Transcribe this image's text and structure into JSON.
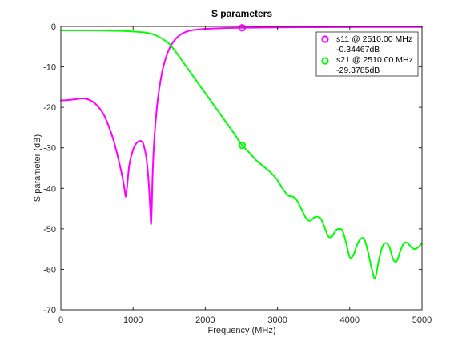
{
  "chart_data": {
    "type": "line",
    "title": "S parameters",
    "xlabel": "Frequency (MHz)",
    "ylabel": "S parameter (dB)",
    "xlim": [
      0,
      5000
    ],
    "ylim": [
      -70,
      0
    ],
    "x_ticks": [
      0,
      1000,
      2000,
      3000,
      4000,
      5000
    ],
    "y_ticks": [
      0,
      -10,
      -20,
      -30,
      -40,
      -50,
      -60,
      -70
    ],
    "x_tick_labels": [
      "0",
      "1000",
      "2000",
      "3000",
      "4000",
      "5000"
    ],
    "y_tick_labels": [
      "0",
      "-10",
      "-20",
      "-30",
      "-40",
      "-50",
      "-60",
      "-70"
    ],
    "grid": false,
    "legend_position": "top-right",
    "series": [
      {
        "name": "s11",
        "color": "#ff00ff",
        "x": [
          0,
          100,
          200,
          300,
          400,
          500,
          600,
          700,
          750,
          800,
          850,
          880,
          900,
          920,
          950,
          1000,
          1050,
          1100,
          1130,
          1150,
          1180,
          1200,
          1220,
          1240,
          1250,
          1260,
          1270,
          1290,
          1320,
          1350,
          1400,
          1450,
          1500,
          1550,
          1600,
          1650,
          1700,
          1750,
          1800,
          1900,
          2000,
          2100,
          2200,
          2300,
          2400,
          2500,
          2600,
          2800,
          3000,
          3200,
          3500,
          3800,
          4000,
          4200,
          4500,
          4800,
          5000
        ],
        "y": [
          -18.3,
          -18.2,
          -18.0,
          -17.8,
          -18.2,
          -19.5,
          -22.0,
          -26.5,
          -29.5,
          -33.0,
          -37.0,
          -40.0,
          -42.0,
          -39.0,
          -34.0,
          -30.5,
          -28.8,
          -28.3,
          -28.6,
          -29.5,
          -32.0,
          -35.0,
          -39.5,
          -46.0,
          -48.8,
          -44.0,
          -37.0,
          -29.0,
          -22.0,
          -17.0,
          -11.5,
          -8.0,
          -5.6,
          -4.0,
          -2.9,
          -2.1,
          -1.6,
          -1.25,
          -1.0,
          -0.75,
          -0.6,
          -0.52,
          -0.46,
          -0.4,
          -0.37,
          -0.34,
          -0.32,
          -0.28,
          -0.25,
          -0.22,
          -0.2,
          -0.18,
          -0.17,
          -0.16,
          -0.15,
          -0.14,
          -0.14
        ]
      },
      {
        "name": "s21",
        "color": "#00ff00",
        "x": [
          0,
          200,
          400,
          600,
          800,
          1000,
          1100,
          1200,
          1300,
          1400,
          1500,
          1600,
          1700,
          1800,
          1900,
          2000,
          2100,
          2200,
          2300,
          2400,
          2510,
          2600,
          2700,
          2800,
          2900,
          3000,
          3050,
          3100,
          3150,
          3200,
          3250,
          3300,
          3350,
          3400,
          3450,
          3500,
          3550,
          3600,
          3650,
          3700,
          3750,
          3800,
          3850,
          3900,
          3950,
          4000,
          4050,
          4100,
          4150,
          4200,
          4250,
          4300,
          4350,
          4400,
          4450,
          4500,
          4550,
          4600,
          4650,
          4700,
          4750,
          4800,
          4850,
          4900,
          4950,
          5000
        ],
        "y": [
          -1.0,
          -1.0,
          -1.0,
          -1.05,
          -1.1,
          -1.25,
          -1.4,
          -1.6,
          -2.1,
          -3.0,
          -4.3,
          -6.5,
          -9.0,
          -11.5,
          -14.0,
          -16.5,
          -19.0,
          -21.5,
          -24.0,
          -26.5,
          -29.38,
          -31.0,
          -33.0,
          -34.5,
          -36.0,
          -38.0,
          -39.5,
          -40.8,
          -41.8,
          -42.0,
          -42.5,
          -44.0,
          -45.8,
          -47.5,
          -48.0,
          -47.3,
          -47.0,
          -47.5,
          -49.5,
          -51.8,
          -52.0,
          -50.5,
          -50.0,
          -50.5,
          -53.5,
          -57.0,
          -56.5,
          -54.0,
          -52.5,
          -52.5,
          -55.5,
          -59.5,
          -62.2,
          -58.0,
          -54.5,
          -53.5,
          -54.5,
          -57.5,
          -58.0,
          -55.5,
          -53.5,
          -53.5,
          -54.5,
          -55.0,
          -54.5,
          -53.5
        ]
      }
    ],
    "markers": [
      {
        "series": "s11",
        "x": 2510,
        "y": -0.34467,
        "label": "s11 @ 2510.00 MHz",
        "value": "-0.34467dB"
      },
      {
        "series": "s21",
        "x": 2510,
        "y": -29.3785,
        "label": "s21 @ 2510.00 MHz",
        "value": "-29.3785dB"
      }
    ]
  }
}
